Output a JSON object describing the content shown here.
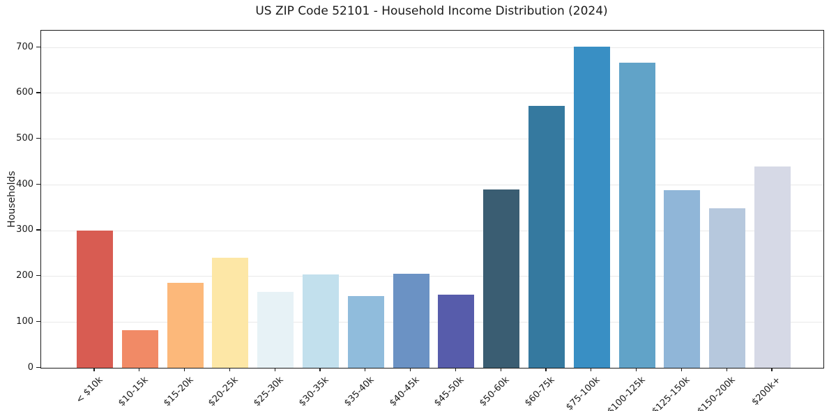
{
  "figure": {
    "title": "US ZIP Code 52101 - Household Income Distribution (2024)"
  },
  "chart_data": {
    "type": "bar",
    "title": "US ZIP Code 52101 - Household Income Distribution (2024)",
    "xlabel": "",
    "ylabel": "Households",
    "ylim": [
      0,
      737
    ],
    "yticks": [
      0,
      100,
      200,
      300,
      400,
      500,
      600,
      700
    ],
    "grid": "horizontal-light",
    "legend": "none",
    "categories": [
      "< $10k",
      "$10-15k",
      "$15-20k",
      "$20-25k",
      "$25-30k",
      "$30-35k",
      "$35-40k",
      "$40-45k",
      "$45-50k",
      "$50-60k",
      "$60-75k",
      "$75-100k",
      "$100-125k",
      "$125-150k",
      "$150-200k",
      "$200k+"
    ],
    "values": [
      300,
      82,
      186,
      240,
      166,
      204,
      157,
      206,
      160,
      390,
      573,
      702,
      667,
      389,
      348,
      440
    ],
    "bar_colors": [
      "#d85c52",
      "#f18a66",
      "#fcb87a",
      "#fde7a6",
      "#e7f2f6",
      "#c2e0ed",
      "#90bcdc",
      "#6b92c4",
      "#575cab",
      "#3a5d72",
      "#35799f",
      "#398fc4",
      "#61a3c8",
      "#90b6d8",
      "#b6c8dd",
      "#d6d9e6"
    ]
  },
  "colors": {
    "background": "#ffffff",
    "grid": "#e9e9e9",
    "spine": "#1a1a1a",
    "text": "#1a1a1a"
  }
}
